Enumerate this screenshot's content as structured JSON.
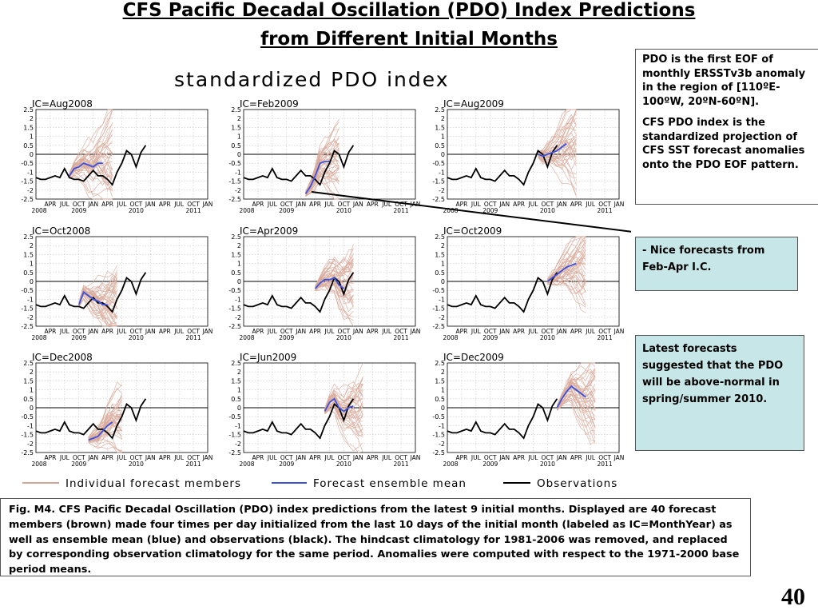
{
  "page": {
    "title_line1": "CFS Pacific Decadal Oscillation (PDO) Index Predictions",
    "title_line2": "from Different Initial Months",
    "page_number": "40"
  },
  "figure": {
    "heading": "standardized PDO index",
    "legend": [
      {
        "label": "Individual forecast members",
        "color": "#d4a594"
      },
      {
        "label": "Forecast ensemble mean",
        "color": "#3b52e0"
      },
      {
        "label": "Observations",
        "color": "#000000"
      }
    ]
  },
  "notes": {
    "box1_p1": "PDO  is the first EOF of monthly ERSSTv3b anomaly  in the region of [110ºE-100ºW, 20ºN-60ºN].",
    "box1_p2": "CFS PDO index  is  the standardized projection of CFS SST forecast anomalies onto the PDO EOF pattern.",
    "box2": "- Nice forecasts from Feb-Apr I.C.",
    "box3": "Latest forecasts suggested that the PDO will be above-normal in spring/summer 2010."
  },
  "caption": "Fig. M4. CFS Pacific Decadal Oscillation (PDO) index predictions from the latest 9 initial months. Displayed are 40 forecast members (brown) made four times per day initialized from the last 10 days of the initial month (labeled as IC=MonthYear) as well as ensemble mean (blue) and observations (black). The hindcast climatology for 1981-2006 was removed, and replaced by corresponding observation climatology for the same period. Anomalies were computed with respect to the 1971-2000 base period means.",
  "chart_data": {
    "type": "line",
    "ylabel": "",
    "ylim": [
      -2.5,
      2.5
    ],
    "y_ticks": [
      "2.5",
      "2",
      "1.5",
      "1",
      "0.5",
      "0",
      "-0.5",
      "-1",
      "-1.5",
      "-2",
      "-2.5"
    ],
    "x_month_ticks": [
      "APR",
      "JUL",
      "OCT",
      "JAN",
      "APR",
      "JUL",
      "OCT",
      "JAN",
      "APR",
      "JUL",
      "OCT",
      "JAN"
    ],
    "x_year_labels": [
      {
        "label": "2008",
        "month_index": 0
      },
      {
        "label": "2009",
        "month_index": 9
      },
      {
        "label": "2010",
        "month_index": 21
      },
      {
        "label": "2011",
        "month_index": 33
      }
    ],
    "grid": "dotted",
    "observations_months": [
      "2008-01",
      "2008-02",
      "2008-03",
      "2008-04",
      "2008-05",
      "2008-06",
      "2008-07",
      "2008-08",
      "2008-09",
      "2008-10",
      "2008-11",
      "2008-12",
      "2009-01",
      "2009-02",
      "2009-03",
      "2009-04",
      "2009-05",
      "2009-06",
      "2009-07",
      "2009-08",
      "2009-09",
      "2009-10",
      "2009-11",
      "2009-12"
    ],
    "observations": [
      -1.3,
      -1.4,
      -1.4,
      -1.3,
      -1.2,
      -1.3,
      -0.8,
      -1.3,
      -1.4,
      -1.4,
      -1.5,
      -1.2,
      -0.9,
      -1.2,
      -1.2,
      -1.4,
      -1.7,
      -1.0,
      -0.5,
      0.2,
      0.0,
      -0.7,
      0.1,
      0.5
    ],
    "panels": [
      {
        "label": "IC=Aug2008",
        "mean_start": 7,
        "mean": [
          -1.2,
          -0.8,
          -0.7,
          -0.5,
          -0.6,
          -0.7,
          -0.5,
          -0.5
        ]
      },
      {
        "label": "IC=Feb2009",
        "mean_start": 13,
        "mean": [
          -2.2,
          -1.8,
          -1.2,
          -0.5,
          -0.4,
          -0.4
        ]
      },
      {
        "label": "IC=Aug2009",
        "mean_start": 19,
        "mean": [
          0.0,
          -0.1,
          0.0,
          0.1,
          0.2,
          0.4,
          0.6
        ]
      },
      {
        "label": "IC=Oct2008",
        "mean_start": 9,
        "mean": [
          -1.3,
          -0.6,
          -0.8,
          -1.0,
          -1.1,
          -1.3,
          -1.3
        ]
      },
      {
        "label": "IC=Apr2009",
        "mean_start": 15,
        "mean": [
          -0.4,
          -0.1,
          0.1,
          0.1,
          0.2,
          -0.2,
          -0.4
        ]
      },
      {
        "label": "IC=Oct2009",
        "mean_start": 21,
        "mean": [
          0.0,
          0.2,
          0.4,
          0.6,
          0.8,
          0.9,
          1.0
        ]
      },
      {
        "label": "IC=Dec2008",
        "mean_start": 11,
        "mean": [
          -1.8,
          -1.7,
          -1.6,
          -1.3,
          -1.0,
          -0.8
        ]
      },
      {
        "label": "IC=Jun2009",
        "mean_start": 17,
        "mean": [
          -0.2,
          0.3,
          0.5,
          0.0,
          -0.2,
          0.0,
          0.1
        ]
      },
      {
        "label": "IC=Dec2009",
        "mean_start": 23,
        "mean": [
          0.0,
          0.5,
          0.9,
          1.2,
          1.0,
          0.8,
          0.6
        ]
      }
    ]
  }
}
